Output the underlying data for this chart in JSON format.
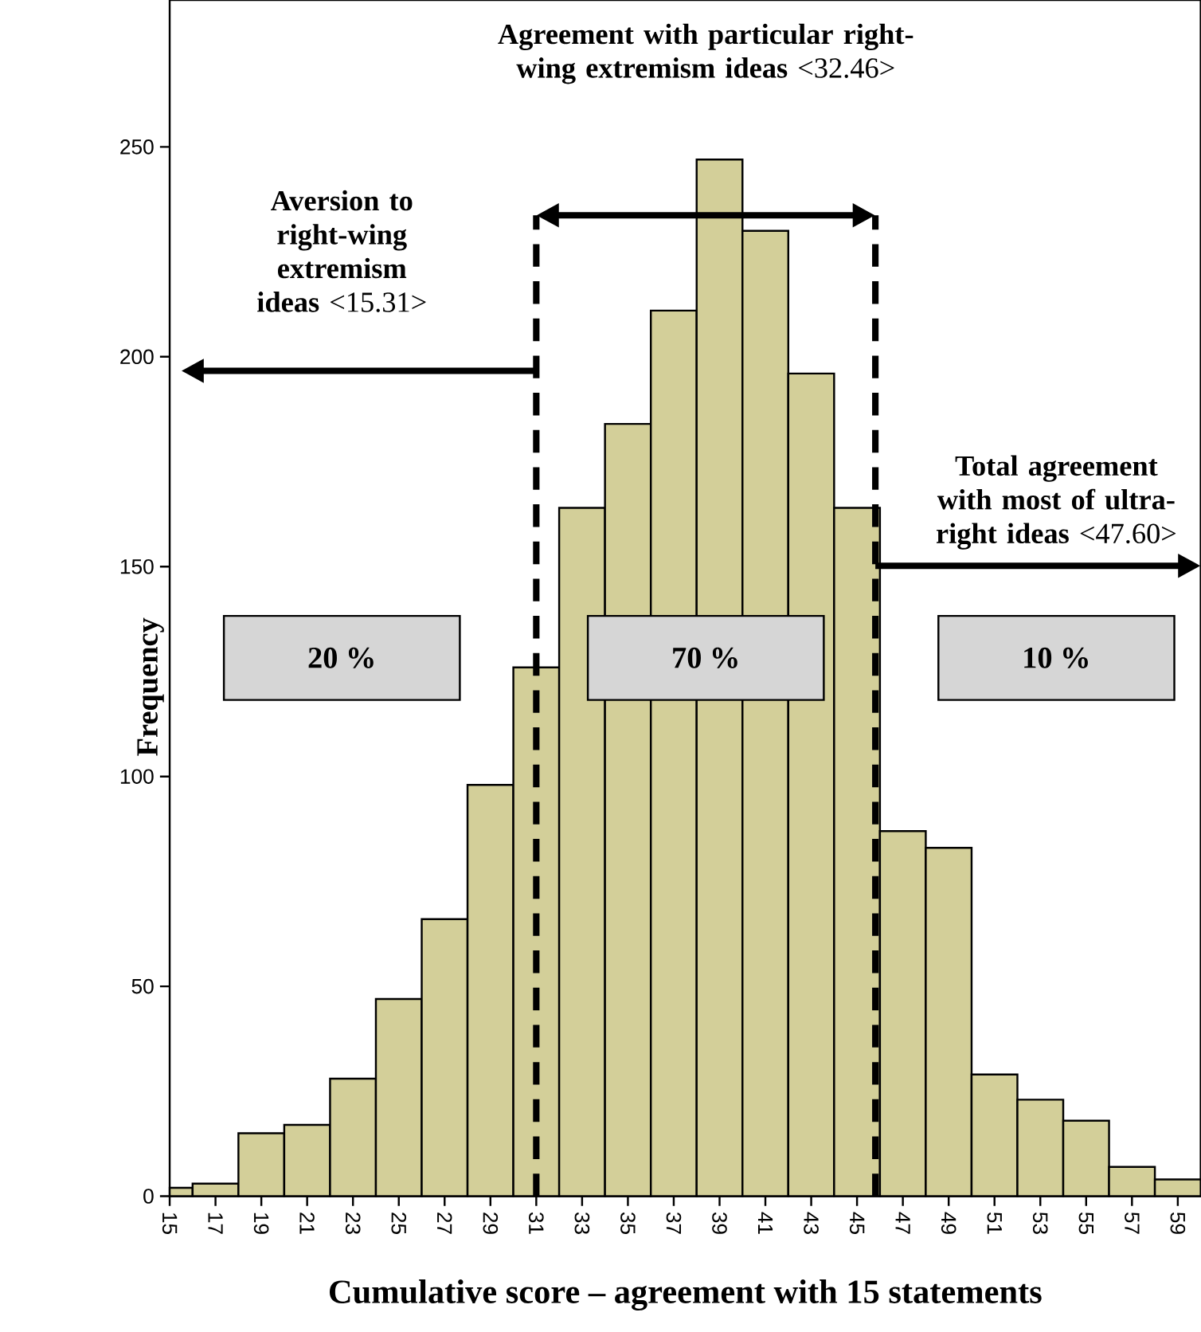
{
  "chart_data": {
    "type": "histogram",
    "bins": [
      15,
      16,
      18,
      20,
      22,
      24,
      26,
      28,
      30,
      32,
      34,
      36,
      38,
      40,
      42,
      44,
      46,
      48,
      50,
      52,
      54,
      56,
      58,
      60
    ],
    "values": [
      2,
      3,
      15,
      17,
      28,
      47,
      66,
      98,
      126,
      164,
      184,
      211,
      247,
      230,
      196,
      164,
      87,
      83,
      29,
      23,
      18,
      7,
      4
    ],
    "color": "#d3cf99",
    "xlim": [
      15,
      60
    ],
    "ylim": [
      0,
      285
    ],
    "xticks": [
      15,
      17,
      19,
      21,
      23,
      25,
      27,
      29,
      31,
      33,
      35,
      37,
      39,
      41,
      43,
      45,
      47,
      49,
      51,
      53,
      55,
      57,
      59
    ],
    "yticks": [
      0,
      50,
      100,
      150,
      200,
      250
    ],
    "xlabel": "Cumulative score – agreement with 15 statements",
    "ylabel": "Frequency",
    "ref_lines": [
      {
        "axis": "x",
        "value": 31,
        "color": "#000000",
        "line_style": "dashed"
      },
      {
        "axis": "x",
        "value": 45.8,
        "color": "#000000",
        "line_style": "dashed"
      }
    ],
    "annotations": [
      "**Aversion to right-wing extremism ideas** <15.31>",
      "**Agreement with particular right-wing extremism ideas** <32.46>",
      "**Total agreement with most of ultra-right ideas** <47.60>",
      "20 %",
      "70 %",
      "10 %"
    ]
  }
}
